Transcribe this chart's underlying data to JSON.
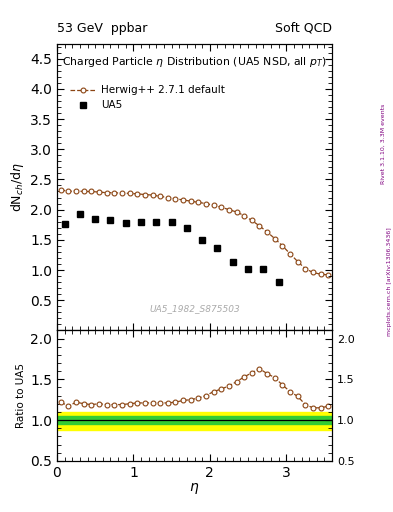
{
  "title_left": "53 GeV  ppbar",
  "title_right": "Soft QCD",
  "ylabel_main": "dN$_{ch}$/d$\\eta$",
  "ylabel_ratio": "Ratio to UA5",
  "xlabel": "$\\eta$",
  "right_label1": "Rivet 3.1.10, 3.3M events",
  "right_label2": "mcplots.cern.ch [arXiv:1306.3436]",
  "watermark": "UA5_1982_S875503",
  "ylim_main": [
    0.0,
    4.75
  ],
  "ylim_ratio": [
    0.5,
    2.1
  ],
  "yticks_main": [
    0.5,
    1.0,
    1.5,
    2.0,
    2.5,
    3.0,
    3.5,
    4.0,
    4.5
  ],
  "yticks_ratio": [
    0.5,
    1.0,
    1.5,
    2.0
  ],
  "xlim": [
    0.0,
    3.6
  ],
  "ua5_x": [
    0.1,
    0.3,
    0.5,
    0.7,
    0.9,
    1.1,
    1.3,
    1.5,
    1.7,
    1.9,
    2.1,
    2.3,
    2.5,
    2.7,
    2.9
  ],
  "ua5_y": [
    1.76,
    1.92,
    1.85,
    1.82,
    1.78,
    1.8,
    1.8,
    1.79,
    1.69,
    1.5,
    1.36,
    1.13,
    1.01,
    1.01,
    0.8
  ],
  "herwig_x": [
    0.05,
    0.15,
    0.25,
    0.35,
    0.45,
    0.55,
    0.65,
    0.75,
    0.85,
    0.95,
    1.05,
    1.15,
    1.25,
    1.35,
    1.45,
    1.55,
    1.65,
    1.75,
    1.85,
    1.95,
    2.05,
    2.15,
    2.25,
    2.35,
    2.45,
    2.55,
    2.65,
    2.75,
    2.85,
    2.95,
    3.05,
    3.15,
    3.25,
    3.35,
    3.45,
    3.55
  ],
  "herwig_y": [
    2.33,
    2.3,
    2.31,
    2.3,
    2.3,
    2.29,
    2.28,
    2.28,
    2.27,
    2.27,
    2.26,
    2.25,
    2.24,
    2.22,
    2.2,
    2.18,
    2.16,
    2.14,
    2.12,
    2.1,
    2.07,
    2.04,
    2.0,
    1.96,
    1.9,
    1.82,
    1.73,
    1.63,
    1.52,
    1.4,
    1.27,
    1.14,
    1.02,
    0.96,
    0.93,
    0.92
  ],
  "ratio_x": [
    0.05,
    0.15,
    0.25,
    0.35,
    0.45,
    0.55,
    0.65,
    0.75,
    0.85,
    0.95,
    1.05,
    1.15,
    1.25,
    1.35,
    1.45,
    1.55,
    1.65,
    1.75,
    1.85,
    1.95,
    2.05,
    2.15,
    2.25,
    2.35,
    2.45,
    2.55,
    2.65,
    2.75,
    2.85,
    2.95,
    3.05,
    3.15,
    3.25,
    3.35,
    3.45,
    3.55
  ],
  "ratio_y": [
    1.22,
    1.17,
    1.22,
    1.2,
    1.19,
    1.2,
    1.19,
    1.19,
    1.19,
    1.2,
    1.21,
    1.21,
    1.21,
    1.21,
    1.21,
    1.22,
    1.24,
    1.25,
    1.27,
    1.3,
    1.35,
    1.38,
    1.42,
    1.47,
    1.53,
    1.58,
    1.63,
    1.57,
    1.52,
    1.43,
    1.35,
    1.29,
    1.19,
    1.15,
    1.15,
    1.17
  ],
  "green_band_lo": 0.95,
  "green_band_hi": 1.05,
  "yellow_band_lo": 0.88,
  "yellow_band_hi": 1.1,
  "herwig_color": "#8B4513",
  "ua5_color": "#000000",
  "green_color": "#33CC33",
  "yellow_color": "#FFFF00"
}
